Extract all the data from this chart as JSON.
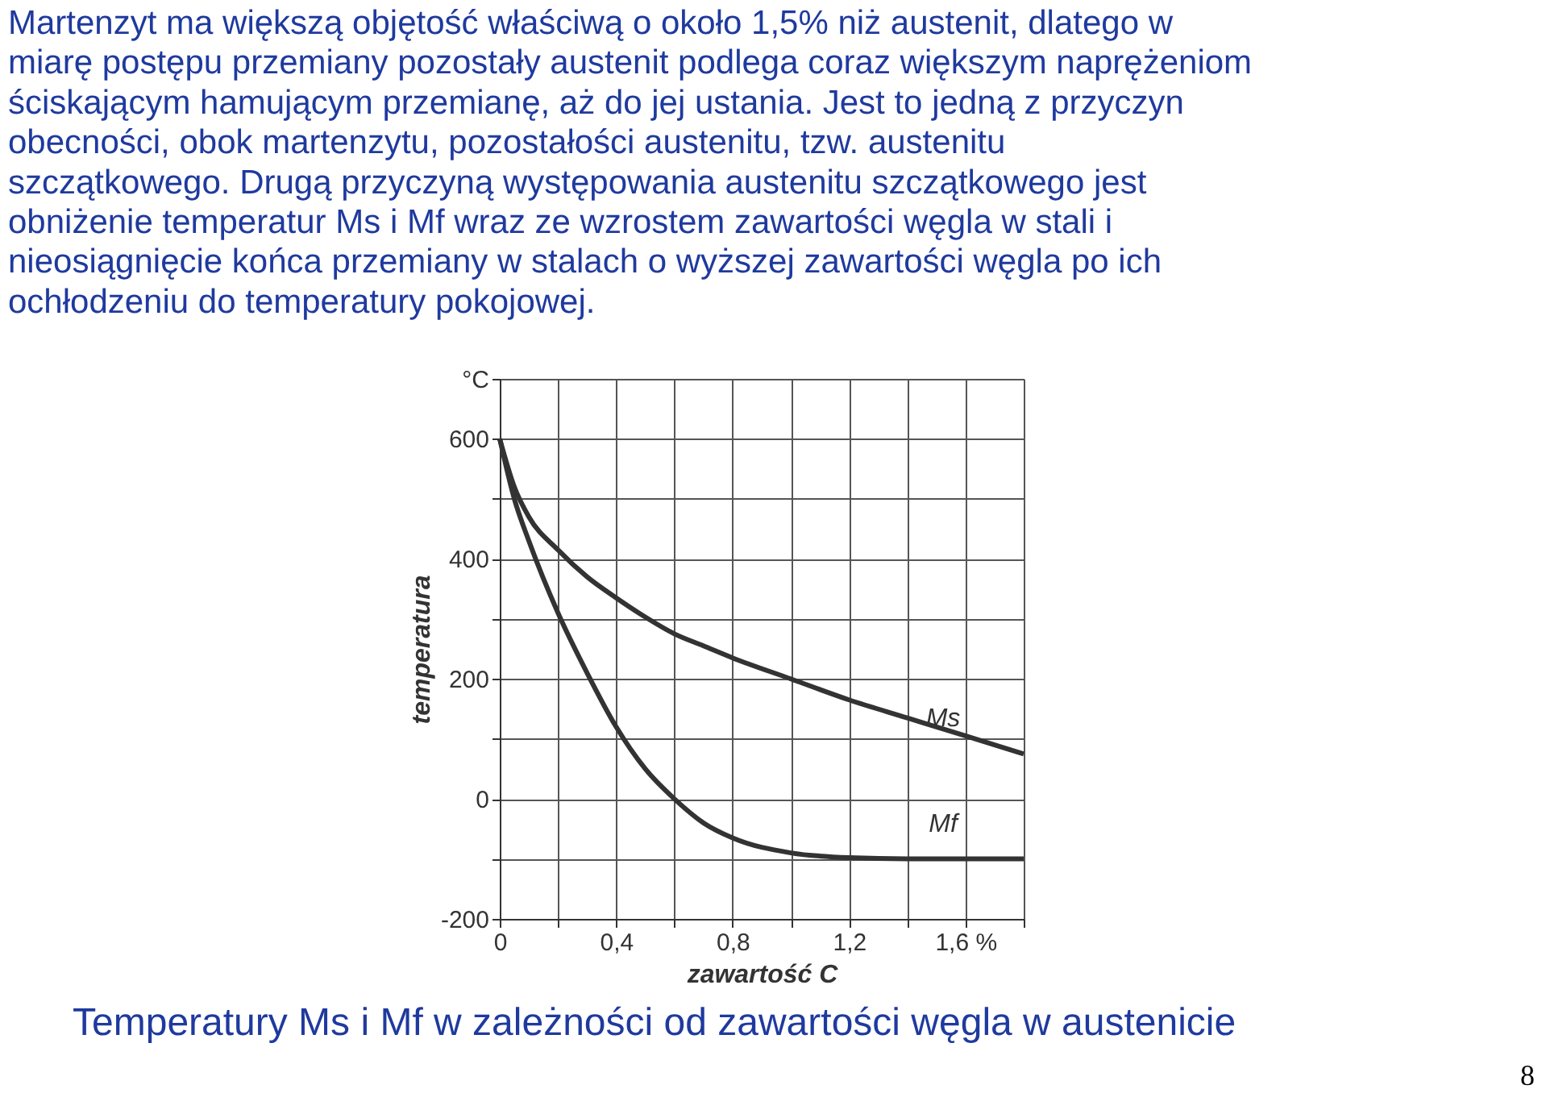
{
  "chart_data": {
    "type": "line",
    "title": "Temperatury Ms i Mf w zależności od zawartości węgla w austenicie",
    "xlabel": "zawartość C",
    "ylabel": "temperatura",
    "annotations": [
      "Martenzyt ma większą objętość właściwą o około 1,5% niż austenit, dlatego w",
      "miarę postępu przemiany pozostały austenit podlega coraz większym naprężeniom",
      "ściskającym hamującym przemianę, aż do jej ustania. Jest to jedną z przyczyn",
      "obecności, obok martenzytu, pozostałości austenitu, tzw. austenitu",
      "szczątkowego. Drugą przyczyną występowania austenitu szczątkowego jest",
      "obniżenie temperatur Ms i Mf wraz ze wzrostem zawartości węgla w stali i",
      "nieosiągnięcie końca przemiany w stalach o wyższej zawartości węgla po ich",
      "ochłodzeniu do temperatury pokojowej.",
      "8"
    ],
    "x": [
      0,
      0.05,
      0.1,
      0.2,
      0.3,
      0.4,
      0.5,
      0.6,
      0.7,
      0.8,
      1.0,
      1.2,
      1.4,
      1.6,
      1.8
    ],
    "series": [
      {
        "name": "Ms",
        "color": "#333333",
        "values": [
          600,
          520,
          470,
          415,
          370,
          335,
          303,
          275,
          255,
          235,
          200,
          165,
          135,
          105,
          75
        ]
      },
      {
        "name": "Mf",
        "color": "#333333",
        "values": [
          600,
          500,
          430,
          310,
          210,
          120,
          50,
          0,
          -40,
          -65,
          -90,
          -98,
          -100,
          -100,
          -100
        ]
      }
    ],
    "xlim": [
      0,
      1.8
    ],
    "xticks": [
      0,
      {
        "value": 0.2,
        "label": null
      },
      {
        "value": 0.4,
        "label": "0,4"
      },
      {
        "value": 0.6,
        "label": null
      },
      {
        "value": 0.8,
        "label": "0,8"
      },
      {
        "value": 1.0,
        "label": null
      },
      {
        "value": 1.2,
        "label": "1,2"
      },
      {
        "value": 1.4,
        "label": null
      },
      {
        "value": 1.6,
        "label": "1,6 %"
      },
      {
        "value": 1.8,
        "label": null
      }
    ],
    "ylim": [
      -200,
      700
    ],
    "yticks": [
      -200,
      {
        "value": -100,
        "label": null
      },
      0,
      {
        "value": 100,
        "label": null
      },
      200,
      {
        "value": 300,
        "label": null
      },
      400,
      {
        "value": 500,
        "label": null
      },
      600,
      {
        "value": 700,
        "label": "°C"
      }
    ],
    "grid": true,
    "marker": "none",
    "line_style": "solid"
  }
}
